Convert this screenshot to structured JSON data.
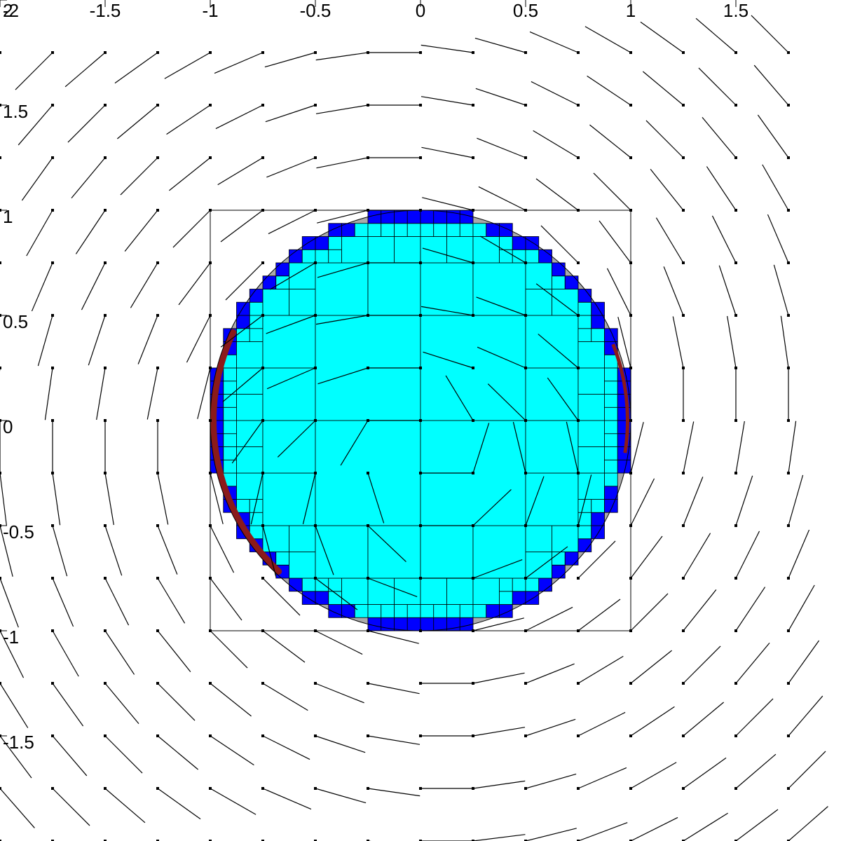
{
  "chart_data": {
    "type": "vector-field",
    "title": "",
    "xlabel": "",
    "ylabel": "",
    "xlim": [
      -2,
      2
    ],
    "ylim": [
      -2,
      2
    ],
    "grid": false,
    "x_ticks": [
      {
        "value": -2,
        "label": "-2"
      },
      {
        "value": -1.5,
        "label": "-1.5"
      },
      {
        "value": -1,
        "label": "-1"
      },
      {
        "value": -0.5,
        "label": "-0.5"
      },
      {
        "value": 0,
        "label": "0"
      },
      {
        "value": 0.5,
        "label": "0.5"
      },
      {
        "value": 1,
        "label": "1"
      },
      {
        "value": 1.5,
        "label": "1.5"
      }
    ],
    "y_ticks": [
      {
        "value": 2,
        "label": "2"
      },
      {
        "value": 1.5,
        "label": "1.5"
      },
      {
        "value": 1,
        "label": "1"
      },
      {
        "value": 0.5,
        "label": "0.5"
      },
      {
        "value": 0,
        "label": "0"
      },
      {
        "value": -0.5,
        "label": "-0.5"
      },
      {
        "value": -1,
        "label": "-1"
      },
      {
        "value": -1.5,
        "label": "-1.5"
      }
    ],
    "bounding_box": {
      "x": [
        -1,
        1
      ],
      "y": [
        -1,
        1
      ]
    },
    "circle": {
      "center": [
        0,
        0
      ],
      "radius": 1
    },
    "field": {
      "x_start": -2,
      "x_step": 0.25,
      "x_count": 16,
      "y_start": 1.75,
      "y_step": -0.25,
      "y_count": 16,
      "glyph_length": 0.25,
      "description": "unit direction of rotation about the origin, perturbed near the circle"
    },
    "colors": {
      "inside_cells": "#00ffff",
      "boundary_cells": "#0000ff",
      "outside_disk": "#aaaaaa",
      "interface_band": "#8b1a1a",
      "lines": "#000000",
      "background": "#ffffff"
    },
    "quadtree": {
      "levels": [
        {
          "cell": 1,
          "color_key": "inside_cells"
        },
        {
          "cell": 0.5,
          "color_key": "inside_cells"
        },
        {
          "cell": 0.25,
          "color_key": "inside_cells"
        },
        {
          "cell": 0.125,
          "color_key": "inside_cells"
        },
        {
          "cell": 0.0625,
          "color_key": "boundary_cells"
        }
      ]
    }
  }
}
